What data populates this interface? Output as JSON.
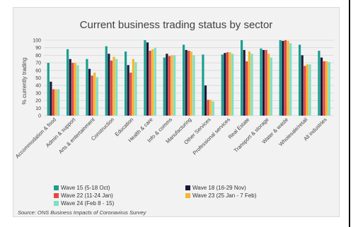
{
  "chart_data": {
    "type": "bar",
    "title": "Current business trading status by sector",
    "xlabel": "",
    "ylabel": "% currently trading",
    "ylim": [
      0,
      100
    ],
    "yticks": [
      0,
      10,
      20,
      30,
      40,
      50,
      60,
      70,
      80,
      90,
      100
    ],
    "grid": true,
    "legend_position": "bottom",
    "source": "Source: ONS Business Impacts of Coronavirus Survey",
    "categories": [
      "Accommodation & food",
      "Admin & support",
      "Arts & entertainment",
      "Construction",
      "Education",
      "Health & care",
      "Info & comms",
      "Manufacturing",
      "Other Services",
      "Professional services",
      "Real Estate",
      "Transport & storage",
      "Water & waste",
      "Wholesale/retail",
      "All industries"
    ],
    "series": [
      {
        "name": "Wave 15 (5-18 Oct)",
        "color": "#1b9e8f",
        "values": [
          70,
          88,
          75,
          92,
          85,
          100,
          77,
          94,
          81,
          81,
          100,
          89,
          100,
          94,
          86
        ]
      },
      {
        "name": "Wave 18 (16-29 Nov)",
        "color": "#1a1a3a",
        "values": [
          45,
          75,
          62,
          82,
          67,
          97,
          82,
          87,
          40,
          83,
          87,
          87,
          99,
          80,
          77
        ]
      },
      {
        "name": "Wave 22 (11-24 Jan)",
        "color": "#e8473e",
        "values": [
          35,
          70,
          53,
          73,
          57,
          86,
          79,
          86,
          21,
          84,
          72,
          87,
          100,
          66,
          72
        ]
      },
      {
        "name": "Wave 23 (25 Jan - 7 Feb)",
        "color": "#f5b731",
        "values": [
          35,
          70,
          57,
          78,
          75,
          88,
          80,
          85,
          21,
          84,
          85,
          82,
          99,
          68,
          72
        ]
      },
      {
        "name": "Wave 24 (Feb 8 - 15)",
        "color": "#7ee0c4",
        "values": [
          35,
          67,
          51,
          75,
          71,
          90,
          80,
          80,
          19,
          82,
          82,
          77,
          96,
          68,
          71
        ]
      }
    ]
  }
}
